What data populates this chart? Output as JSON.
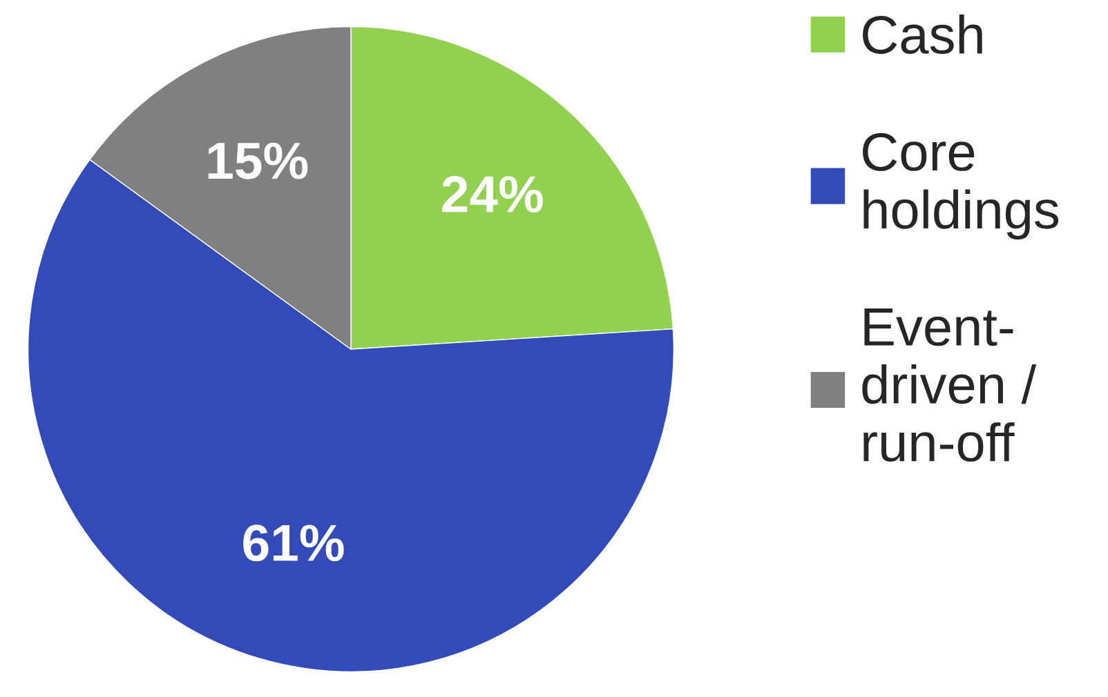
{
  "chart_data": {
    "type": "pie",
    "categories": [
      "Cash",
      "Core\nholdings",
      "Event-\ndriven /\nrun-off"
    ],
    "values": [
      24,
      61,
      15
    ],
    "colors": [
      "#92d050",
      "#334bb9",
      "#808080"
    ],
    "value_labels": [
      "24%",
      "61%",
      "15%"
    ],
    "legend": "right"
  }
}
